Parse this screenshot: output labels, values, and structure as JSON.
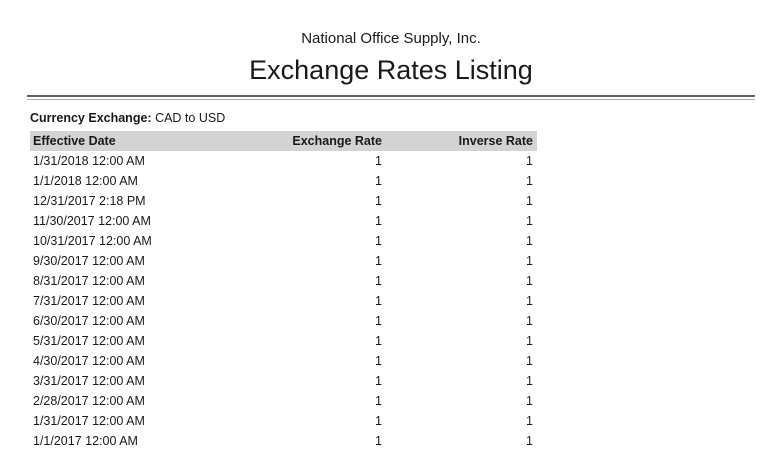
{
  "report": {
    "company_name": "National Office Supply, Inc.",
    "title": "Exchange Rates Listing",
    "filter": {
      "label": "Currency Exchange:",
      "value": "CAD to USD"
    }
  },
  "table": {
    "columns": [
      {
        "label": "Effective Date",
        "align": "left"
      },
      {
        "label": "Exchange Rate",
        "align": "right"
      },
      {
        "label": "Inverse Rate",
        "align": "right"
      }
    ],
    "rows": [
      {
        "effective_date": "1/31/2018 12:00 AM",
        "exchange_rate": "1",
        "inverse_rate": "1"
      },
      {
        "effective_date": "1/1/2018 12:00 AM",
        "exchange_rate": "1",
        "inverse_rate": "1"
      },
      {
        "effective_date": "12/31/2017 2:18 PM",
        "exchange_rate": "1",
        "inverse_rate": "1"
      },
      {
        "effective_date": "11/30/2017 12:00 AM",
        "exchange_rate": "1",
        "inverse_rate": "1"
      },
      {
        "effective_date": "10/31/2017 12:00 AM",
        "exchange_rate": "1",
        "inverse_rate": "1"
      },
      {
        "effective_date": "9/30/2017 12:00 AM",
        "exchange_rate": "1",
        "inverse_rate": "1"
      },
      {
        "effective_date": "8/31/2017 12:00 AM",
        "exchange_rate": "1",
        "inverse_rate": "1"
      },
      {
        "effective_date": "7/31/2017 12:00 AM",
        "exchange_rate": "1",
        "inverse_rate": "1"
      },
      {
        "effective_date": "6/30/2017 12:00 AM",
        "exchange_rate": "1",
        "inverse_rate": "1"
      },
      {
        "effective_date": "5/31/2017 12:00 AM",
        "exchange_rate": "1",
        "inverse_rate": "1"
      },
      {
        "effective_date": "4/30/2017 12:00 AM",
        "exchange_rate": "1",
        "inverse_rate": "1"
      },
      {
        "effective_date": "3/31/2017 12:00 AM",
        "exchange_rate": "1",
        "inverse_rate": "1"
      },
      {
        "effective_date": "2/28/2017 12:00 AM",
        "exchange_rate": "1",
        "inverse_rate": "1"
      },
      {
        "effective_date": "1/31/2017 12:00 AM",
        "exchange_rate": "1",
        "inverse_rate": "1"
      },
      {
        "effective_date": "1/1/2017 12:00 AM",
        "exchange_rate": "1",
        "inverse_rate": "1"
      }
    ]
  },
  "colors": {
    "text": "#1a1a1a",
    "header_bg": "#d3d3d3",
    "rule_dark": "#606060",
    "rule_light": "#a9a9a9"
  }
}
